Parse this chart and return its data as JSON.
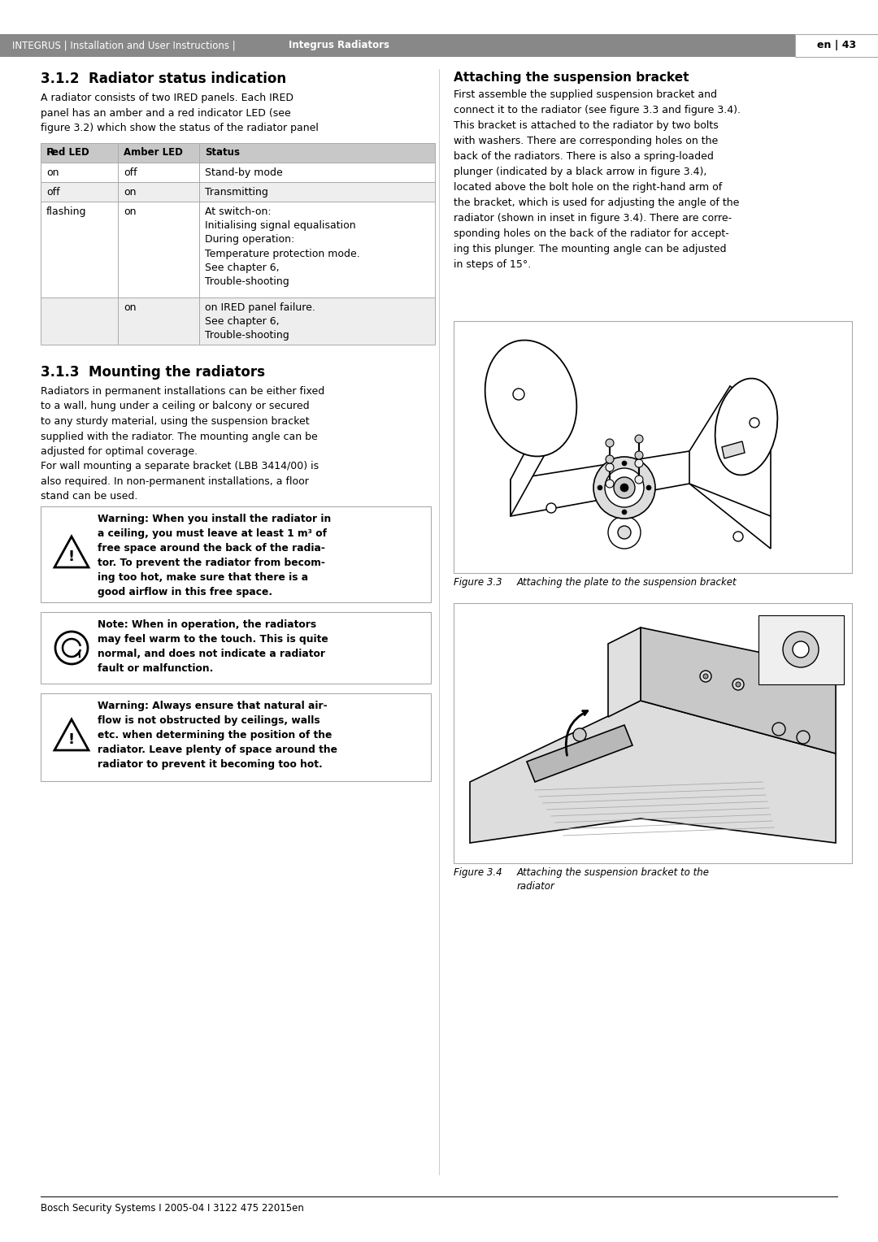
{
  "page_width": 10.8,
  "page_height": 15.28,
  "bg_color": "#ffffff",
  "header_bg": "#888888",
  "header_right_bg": "#ffffff",
  "header_text_normal": "INTEGRUS | Installation and User Instructions | ",
  "header_text_bold": "Integrus Radiators",
  "header_text_right": "en | 43",
  "footer_text": "Bosch Security Systems I 2005-04 I 3122 475 22015en",
  "section_312_title": "3.1.2  Radiator status indication",
  "section_312_body": "A radiator consists of two IRED panels. Each IRED\npanel has an amber and a red indicator LED (see\nfigure 3.2) which show the status of the radiator panel",
  "table_header_bg": "#c8c8c8",
  "table_row_bg_even": "#ffffff",
  "table_row_bg_odd": "#eeeeee",
  "table_border": "#999999",
  "section_313_title": "3.1.3  Mounting the radiators",
  "section_313_body": "Radiators in permanent installations can be either fixed\nto a wall, hung under a ceiling or balcony or secured\nto any sturdy material, using the suspension bracket\nsupplied with the radiator. The mounting angle can be\nadjusted for optimal coverage.\nFor wall mounting a separate bracket (LBB 3414/00) is\nalso required. In non-permanent installations, a floor\nstand can be used.",
  "warning1_text": "Warning: When you install the radiator in\na ceiling, you must leave at least 1 m³ of\nfree space around the back of the radia-\ntor. To prevent the radiator from becom-\ning too hot, make sure that there is a\ngood airflow in this free space.",
  "note_text": "Note: When in operation, the radiators\nmay feel warm to the touch. This is quite\nnormal, and does not indicate a radiator\nfault or malfunction.",
  "warning2_text": "Warning: Always ensure that natural air-\nflow is not obstructed by ceilings, walls\netc. when determining the position of the\nradiator. Leave plenty of space around the\nradiator to prevent it becoming too hot.",
  "right_title": "Attaching the suspension bracket",
  "right_body": "First assemble the supplied suspension bracket and\nconnect it to the radiator (see figure 3.3 and figure 3.4).\nThis bracket is attached to the radiator by two bolts\nwith washers. There are corresponding holes on the\nback of the radiators. There is also a spring-loaded\nplunger (indicated by a black arrow in figure 3.4),\nlocated above the bolt hole on the right-hand arm of\nthe bracket, which is used for adjusting the angle of the\nradiator (shown in inset in figure 3.4). There are corre-\nsponding holes on the back of the radiator for accept-\ning this plunger. The mounting angle can be adjusted\nin steps of 15°.",
  "fig33_caption_label": "Figure 3.3",
  "fig33_caption_text": "Attaching the plate to the suspension bracket",
  "fig34_caption_label": "Figure 3.4",
  "fig34_caption_text": "Attaching the suspension bracket to the\nradiator",
  "border_color": "#aaaaaa",
  "text_color": "#000000"
}
